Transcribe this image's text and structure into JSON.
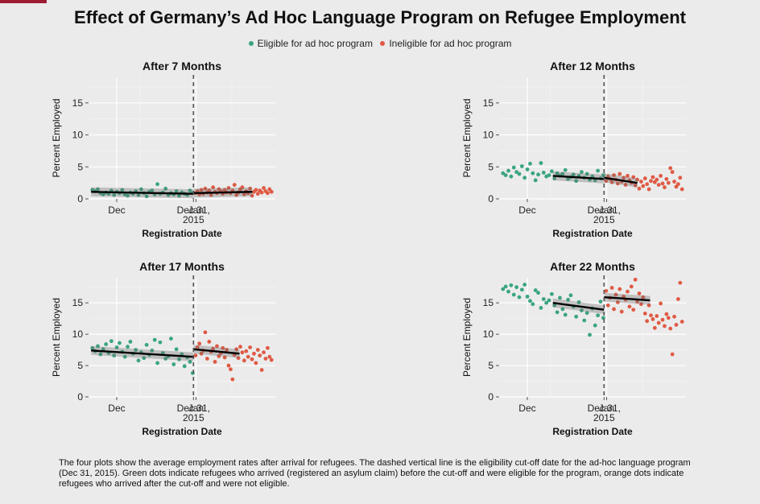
{
  "title": "Effect of Germany’s Ad Hoc Language Program on Refugee Employment",
  "legend": [
    {
      "label": "Eligible for ad hoc program",
      "color": "#3aa57f"
    },
    {
      "label": "Ineligible for ad hoc program",
      "color": "#df5a44"
    }
  ],
  "caption": "The four plots show the average employment rates after arrival for refugees. The dashed vertical line is the eligibility cut-off date for the ad-hoc language program (Dec 31, 2015). Green dots indicate refugees who arrived (registered an asylum claim) before the cut-off and were eligible for the program, orange dots indicate refugees who arrived after the cut-off and were not eligible.",
  "chart_data": [
    {
      "type": "scatter",
      "title": "After 7 Months",
      "xlabel": "Registration Date",
      "ylabel": "Percent Employed",
      "ylim": [
        0,
        19
      ],
      "yticks": [
        0,
        5,
        10,
        15
      ],
      "xticks": [
        {
          "x": "Dec",
          "label": "Dec"
        },
        {
          "x": "Dec 31, 2015",
          "label": "Dec 31,\n2015"
        },
        {
          "x": "Jan",
          "label": "Jan"
        }
      ],
      "cutoff": "Dec 31, 2015",
      "series": [
        {
          "name": "Eligible for ad hoc program",
          "color": "#3aa57f",
          "values": [
            1.4,
            1.2,
            1.5,
            0.9,
            0.7,
            1.0,
            0.8,
            1.3,
            0.6,
            1.1,
            0.9,
            1.4,
            0.7,
            0.5,
            1.0,
            0.8,
            1.2,
            0.6,
            1.5,
            0.9,
            0.4,
            1.1,
            1.3,
            0.7,
            2.3,
            0.8,
            1.0,
            1.6,
            0.6,
            0.9,
            0.7,
            1.2,
            0.5,
            1.0,
            0.8,
            0.6,
            1.3,
            0.9
          ]
        },
        {
          "name": "Ineligible for ad hoc program",
          "color": "#df5a44",
          "values": [
            0.9,
            1.2,
            0.7,
            1.4,
            0.8,
            1.6,
            1.0,
            1.3,
            0.6,
            1.8,
            1.1,
            0.9,
            1.5,
            1.2,
            0.8,
            1.4,
            1.0,
            1.7,
            0.9,
            1.3,
            2.2,
            0.6,
            1.0,
            1.5,
            1.8,
            0.7,
            1.2,
            0.9,
            1.6,
            0.5,
            1.1,
            1.4,
            0.8,
            1.3,
            1.0,
            1.7,
            1.2,
            0.9,
            1.5,
            1.1
          ]
        }
      ],
      "fits": [
        {
          "from": "Nov 21",
          "to": "Dec 31, 2015",
          "y0": 1.1,
          "y1": 0.8
        },
        {
          "from": "Dec 31, 2015",
          "to": "Jan 23",
          "y0": 0.9,
          "y1": 1.1
        }
      ]
    },
    {
      "type": "scatter",
      "title": "After 12 Months",
      "xlabel": "Registration Date",
      "ylabel": "Percent Employed",
      "ylim": [
        0,
        19
      ],
      "yticks": [
        0,
        5,
        10,
        15
      ],
      "xticks": [
        {
          "x": "Dec",
          "label": "Dec"
        },
        {
          "x": "Dec 31, 2015",
          "label": "Dec 31,\n2015"
        },
        {
          "x": "Jan",
          "label": "Jan"
        }
      ],
      "cutoff": "Dec 31, 2015",
      "series": [
        {
          "name": "Eligible for ad hoc program",
          "color": "#3aa57f",
          "values": [
            4.0,
            3.7,
            4.4,
            3.5,
            4.9,
            4.2,
            3.9,
            5.1,
            3.3,
            4.6,
            5.5,
            4.0,
            2.9,
            3.8,
            5.6,
            4.1,
            3.5,
            3.7,
            4.3,
            3.2,
            4.0,
            3.6,
            3.9,
            4.5,
            3.1,
            3.4,
            3.8,
            2.8,
            3.6,
            4.2,
            3.3,
            3.9,
            3.0,
            3.5,
            2.9,
            4.4,
            3.2,
            3.7
          ]
        },
        {
          "name": "Ineligible for ad hoc program",
          "color": "#df5a44",
          "values": [
            2.8,
            3.5,
            3.1,
            2.6,
            3.7,
            3.0,
            2.4,
            3.9,
            2.7,
            3.3,
            2.2,
            3.6,
            2.9,
            2.5,
            3.4,
            2.1,
            3.0,
            1.6,
            2.7,
            2.0,
            3.2,
            2.3,
            1.5,
            2.8,
            3.4,
            2.6,
            3.0,
            2.2,
            3.6,
            2.4,
            1.8,
            3.1,
            2.5,
            4.8,
            4.2,
            2.7,
            1.9,
            2.3,
            3.3,
            1.5
          ]
        }
      ],
      "fits": [
        {
          "from": "Dec 11",
          "to": "Dec 31, 2015",
          "y0": 3.6,
          "y1": 3.1
        },
        {
          "from": "Dec 31, 2015",
          "to": "Jan 13",
          "y0": 3.3,
          "y1": 2.5
        }
      ]
    },
    {
      "type": "scatter",
      "title": "After 17 Months",
      "xlabel": "Registration Date",
      "ylabel": "Percent Employed",
      "ylim": [
        0,
        19
      ],
      "yticks": [
        0,
        5,
        10,
        15
      ],
      "xticks": [
        {
          "x": "Dec",
          "label": "Dec"
        },
        {
          "x": "Dec 31, 2015",
          "label": "Dec 31,\n2015"
        },
        {
          "x": "Jan",
          "label": "Jan"
        }
      ],
      "cutoff": "Dec 31, 2015",
      "series": [
        {
          "name": "Eligible for ad hoc program",
          "color": "#3aa57f",
          "values": [
            7.8,
            7.3,
            8.1,
            6.8,
            7.6,
            8.4,
            7.0,
            8.9,
            6.6,
            7.9,
            8.6,
            7.2,
            6.4,
            8.0,
            8.8,
            6.9,
            7.5,
            5.8,
            7.1,
            6.2,
            8.3,
            6.7,
            7.4,
            9.1,
            5.4,
            8.7,
            7.0,
            6.1,
            6.5,
            9.3,
            5.2,
            7.6,
            6.0,
            6.8,
            4.9,
            6.3,
            5.6,
            3.8
          ]
        },
        {
          "name": "Ineligible for ad hoc program",
          "color": "#df5a44",
          "values": [
            6.6,
            7.9,
            8.5,
            6.9,
            7.4,
            10.3,
            6.1,
            8.8,
            7.2,
            7.7,
            5.6,
            8.1,
            6.5,
            7.0,
            7.8,
            6.3,
            7.5,
            5.0,
            4.4,
            2.8,
            6.7,
            7.6,
            6.2,
            8.0,
            7.1,
            5.8,
            7.3,
            6.4,
            7.9,
            6.0,
            6.9,
            5.4,
            7.5,
            6.6,
            4.3,
            7.1,
            6.1,
            7.8,
            6.4,
            5.9
          ]
        }
      ],
      "fits": [
        {
          "from": "Nov 21",
          "to": "Dec 31, 2015",
          "y0": 7.4,
          "y1": 6.4
        },
        {
          "from": "Dec 31, 2015",
          "to": "Jan 18",
          "y0": 7.6,
          "y1": 6.9
        }
      ]
    },
    {
      "type": "scatter",
      "title": "After 22 Months",
      "xlabel": "Registration Date",
      "ylabel": "Percent Employed",
      "ylim": [
        0,
        19
      ],
      "yticks": [
        0,
        5,
        10,
        15
      ],
      "xticks": [
        {
          "x": "Dec",
          "label": "Dec"
        },
        {
          "x": "Dec 31, 2015",
          "label": "Dec 31,\n2015"
        },
        {
          "x": "Jan",
          "label": "Jan"
        }
      ],
      "cutoff": "Dec 31, 2015",
      "series": [
        {
          "name": "Eligible for ad hoc program",
          "color": "#3aa57f",
          "values": [
            17.2,
            17.6,
            16.8,
            17.8,
            16.3,
            17.5,
            15.9,
            17.1,
            17.9,
            16.0,
            15.3,
            14.8,
            17.0,
            16.6,
            14.2,
            15.6,
            15.0,
            15.4,
            16.4,
            14.6,
            13.5,
            15.8,
            14.0,
            13.1,
            15.5,
            16.2,
            14.4,
            12.8,
            15.1,
            13.8,
            12.2,
            13.4,
            9.9,
            14.1,
            11.4,
            13.0,
            15.2,
            12.6
          ]
        },
        {
          "name": "Ineligible for ad hoc program",
          "color": "#df5a44",
          "values": [
            16.9,
            14.6,
            15.8,
            17.4,
            14.0,
            16.3,
            15.1,
            17.2,
            13.6,
            16.0,
            15.5,
            16.8,
            14.4,
            17.6,
            13.9,
            18.7,
            15.2,
            16.5,
            14.8,
            15.9,
            13.3,
            12.1,
            14.6,
            13.0,
            12.4,
            11.0,
            12.9,
            11.8,
            14.9,
            12.3,
            11.3,
            13.2,
            12.6,
            10.9,
            6.8,
            12.8,
            11.5,
            15.6,
            18.2,
            12.0
          ]
        }
      ],
      "fits": [
        {
          "from": "Dec 11",
          "to": "Dec 31, 2015",
          "y0": 15.0,
          "y1": 13.9
        },
        {
          "from": "Dec 31, 2015",
          "to": "Jan 18",
          "y0": 15.9,
          "y1": 15.4
        }
      ]
    }
  ]
}
